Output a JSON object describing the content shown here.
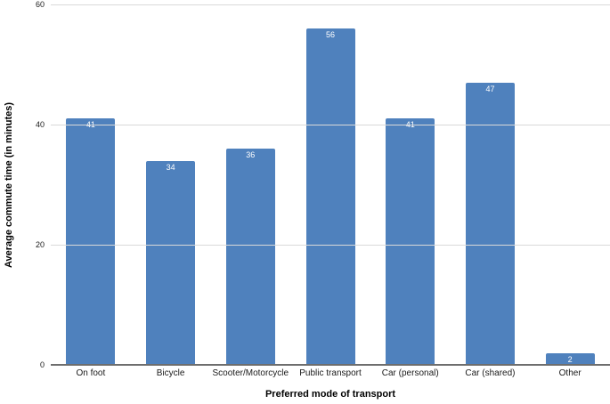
{
  "chart_data": {
    "type": "bar",
    "title": "",
    "categories": [
      "On foot",
      "Bicycle",
      "Scooter/Motorcycle",
      "Public transport",
      "Car (personal)",
      "Car (shared)",
      "Other"
    ],
    "values": [
      41,
      34,
      36,
      56,
      41,
      47,
      2
    ],
    "xlabel": "Preferred mode of transport",
    "ylabel": "Average commute time (in minutes)",
    "ylim": [
      0,
      60
    ],
    "yticks": [
      0,
      20,
      40,
      60
    ],
    "grid": true,
    "legend": "none",
    "bar_color": "#4f81bd",
    "value_label_color": "#ffffff",
    "gridline_color": "#d9d9d9",
    "axis_line_color": "#6e6e6e",
    "background_color": "#ffffff"
  }
}
